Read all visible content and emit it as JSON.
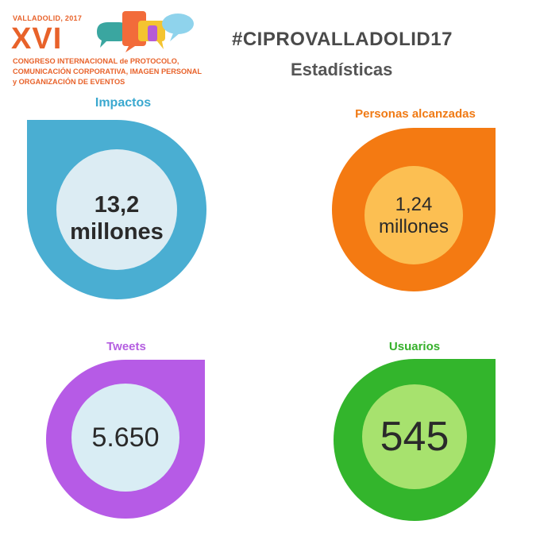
{
  "logo": {
    "city_year": "VALLADOLID, 2017",
    "roman": "XVI",
    "lines": [
      "CONGRESO INTERNACIONAL de PROTOCOLO,",
      "COMUNICACIÓN CORPORATIVA, IMAGEN PERSONAL",
      "y ORGANIZACIÓN DE EVENTOS"
    ],
    "colors": {
      "text": "#e8622a",
      "bubble_teal": "#3aa6a0",
      "bubble_orange": "#f26b3a",
      "bubble_yellow": "#f4c430",
      "bubble_purple": "#b65bd6",
      "bubble_lightblue": "#8fd3ec"
    }
  },
  "header": {
    "hashtag": "#CIPROVALLADOLID17",
    "subtitle": "Estadísticas"
  },
  "stats": [
    {
      "label": "Impactos",
      "value_line1": "13,2",
      "value_line2": "millones",
      "label_color": "#3aa8cf",
      "drop_color": "#4aaed2",
      "inner_color": "#dcecf3"
    },
    {
      "label": "Personas alcanzadas",
      "value_line1": "1,24",
      "value_line2": "millones",
      "label_color": "#f07a14",
      "drop_color": "#f47a12",
      "inner_color": "#fcbf52"
    },
    {
      "label": "Tweets",
      "value_line1": "5.650",
      "value_line2": "",
      "label_color": "#b45ee0",
      "drop_color": "#b65be6",
      "inner_color": "#d9edf4"
    },
    {
      "label": "Usuarios",
      "value_line1": "545",
      "value_line2": "",
      "label_color": "#35b02a",
      "drop_color": "#33b52c",
      "inner_color": "#a7e26e"
    }
  ]
}
